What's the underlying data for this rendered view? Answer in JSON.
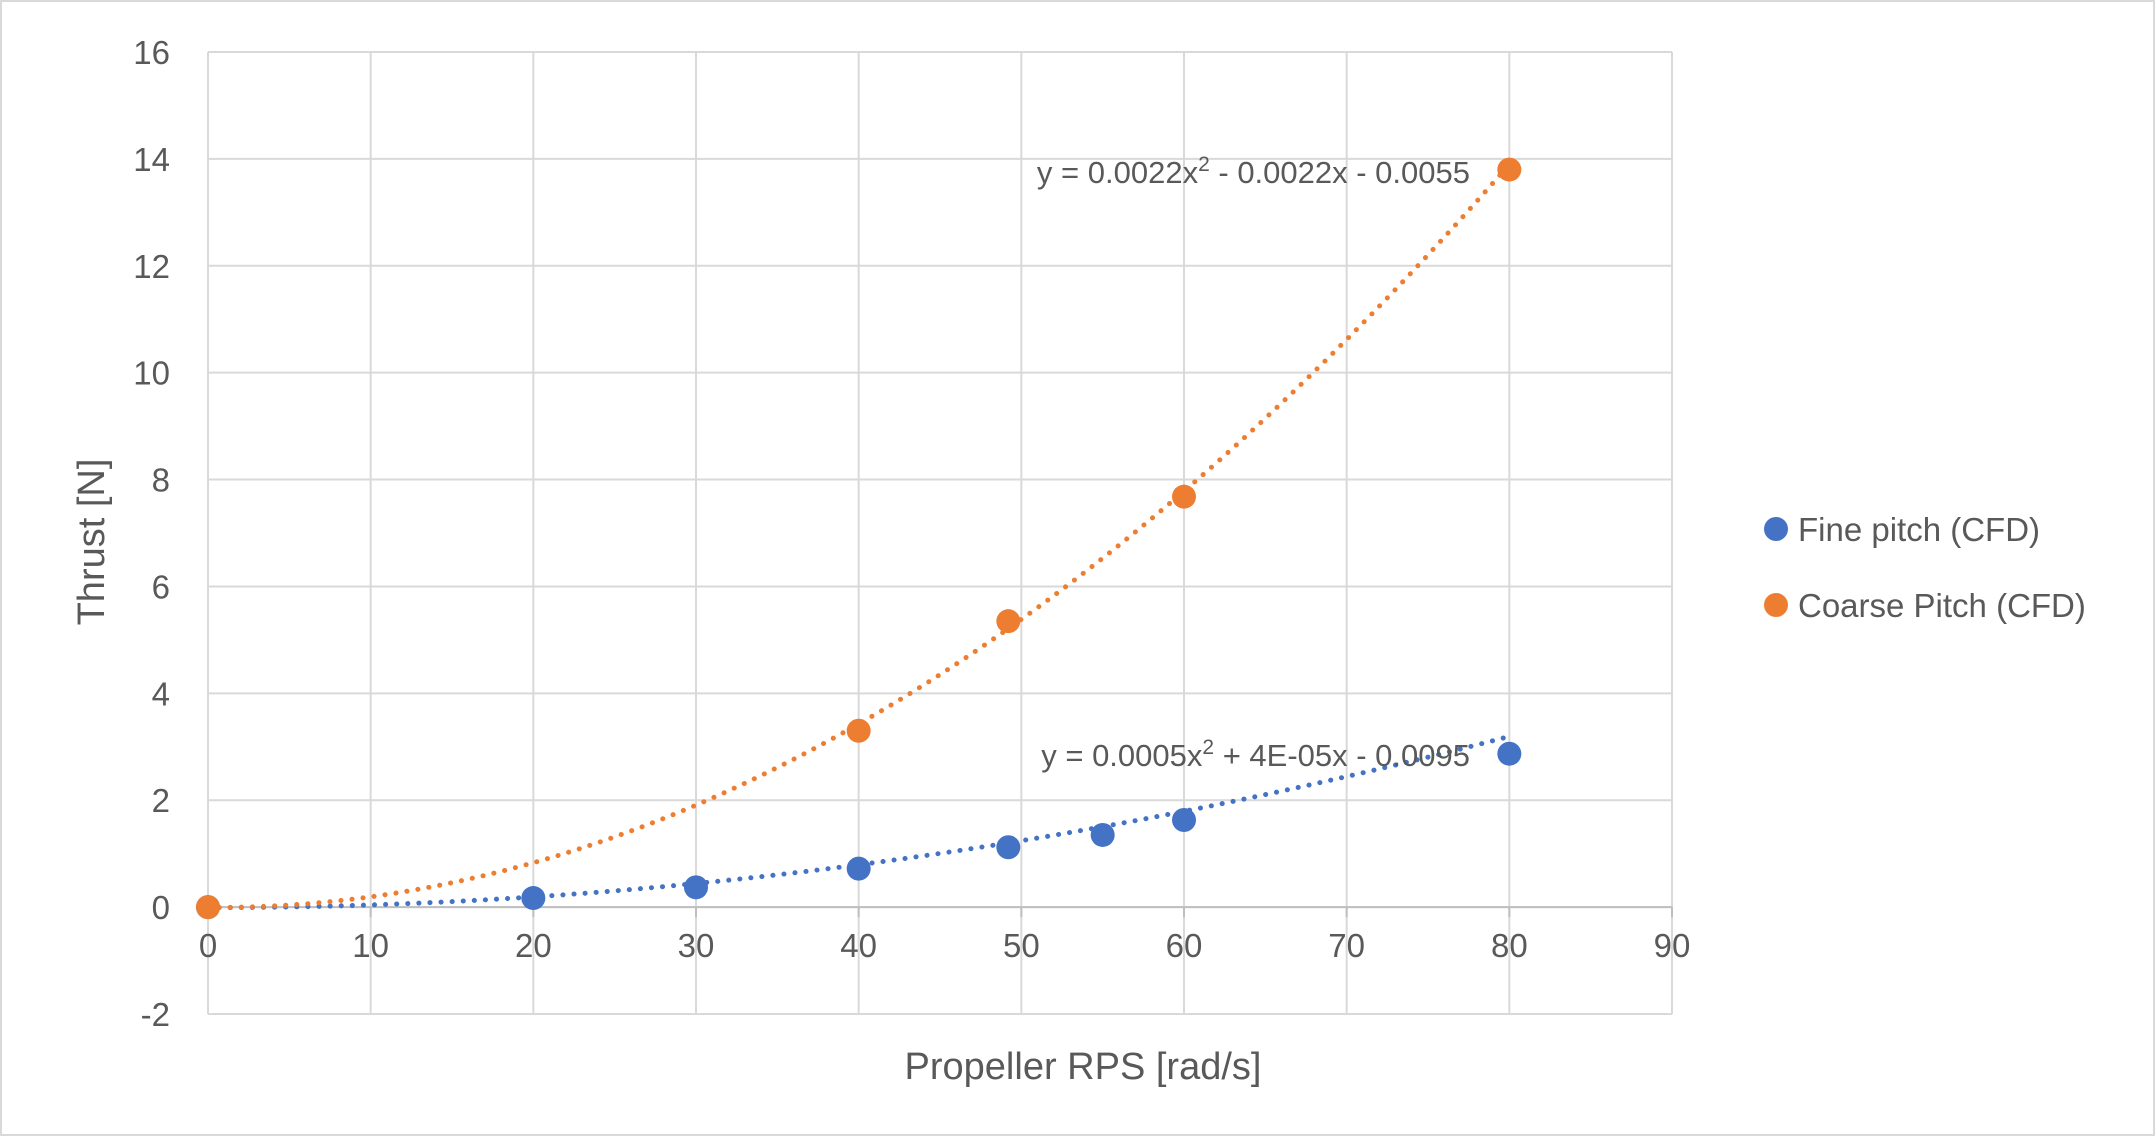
{
  "chart_data": {
    "type": "scatter",
    "title": "",
    "xlabel": "Propeller RPS [rad/s]",
    "ylabel": "Thrust [N]",
    "xlim": [
      0,
      90
    ],
    "ylim": [
      -2,
      16
    ],
    "x_ticks": [
      "0",
      "10",
      "20",
      "30",
      "40",
      "50",
      "60",
      "70",
      "80",
      "90"
    ],
    "y_ticks": [
      "-2",
      "0",
      "2",
      "4",
      "6",
      "8",
      "10",
      "12",
      "14",
      "16"
    ],
    "grid": true,
    "legend_position": "right",
    "series": [
      {
        "name": "Fine pitch (CFD)",
        "color": "#4472C4",
        "points": [
          {
            "x": 0,
            "y": 0
          },
          {
            "x": 20,
            "y": 0.17
          },
          {
            "x": 30,
            "y": 0.37
          },
          {
            "x": 40,
            "y": 0.72
          },
          {
            "x": 49.2,
            "y": 1.12
          },
          {
            "x": 55,
            "y": 1.35
          },
          {
            "x": 60,
            "y": 1.63
          },
          {
            "x": 80,
            "y": 2.87
          }
        ],
        "trendline": {
          "type": "polynomial",
          "coefficients": [
            0.0005,
            4e-05,
            -0.0095
          ],
          "equation": "y = 0.0005x² + 4E-05x - 0.0095"
        }
      },
      {
        "name": "Coarse Pitch (CFD)",
        "color": "#ED7D31",
        "points": [
          {
            "x": 0,
            "y": 0
          },
          {
            "x": 40,
            "y": 3.3
          },
          {
            "x": 49.2,
            "y": 5.35
          },
          {
            "x": 60,
            "y": 7.68
          },
          {
            "x": 80,
            "y": 13.8
          }
        ],
        "trendline": {
          "type": "polynomial",
          "coefficients": [
            0.0022,
            -0.0022,
            -0.0055
          ],
          "equation": "y = 0.0022x² - 0.0022x - 0.0055"
        }
      }
    ]
  }
}
